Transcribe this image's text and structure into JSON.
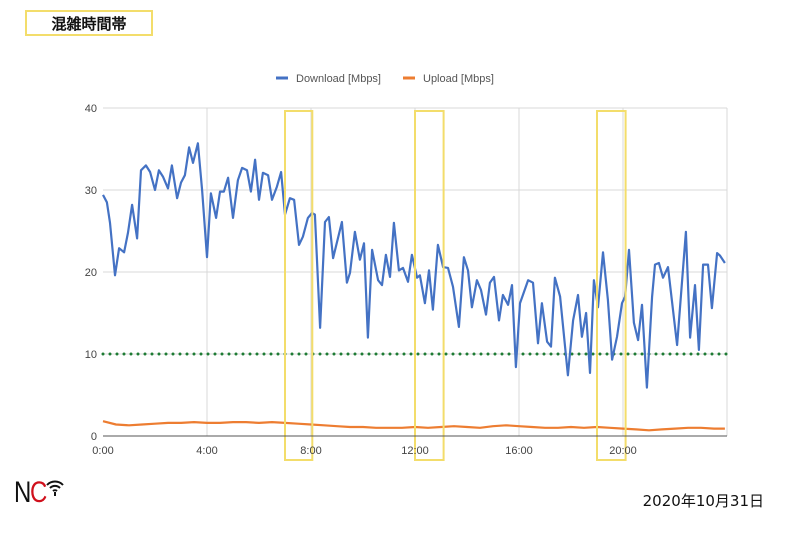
{
  "header": {
    "title": "混雑時間帯"
  },
  "footer": {
    "logo_text": "NC",
    "logo_sub": "Wi-Fi",
    "date": "2020年10月31日"
  },
  "colors": {
    "download": "#4472c4",
    "upload": "#ed7d31",
    "threshold": "#1e7b34",
    "highlight": "#f3dd6b",
    "grid": "#d9d9d9"
  },
  "chart_data": {
    "type": "line",
    "title": "",
    "xlabel": "",
    "ylabel": "",
    "xlim": [
      0,
      24
    ],
    "ylim": [
      0,
      40
    ],
    "grid": true,
    "legend_position": "top",
    "x_ticks": [
      {
        "v": 0,
        "label": "0:00"
      },
      {
        "v": 4,
        "label": "4:00"
      },
      {
        "v": 8,
        "label": "8:00"
      },
      {
        "v": 12,
        "label": "12:00"
      },
      {
        "v": 16,
        "label": "16:00"
      },
      {
        "v": 20,
        "label": "20:00"
      }
    ],
    "y_ticks": [
      {
        "v": 0,
        "label": "0"
      },
      {
        "v": 10,
        "label": "10"
      },
      {
        "v": 20,
        "label": "20"
      },
      {
        "v": 30,
        "label": "30"
      },
      {
        "v": 40,
        "label": "40"
      }
    ],
    "threshold": {
      "value": 10,
      "style": "dotted"
    },
    "highlight_ranges": [
      [
        7.0,
        8.05
      ],
      [
        12.0,
        13.1
      ],
      [
        19.0,
        20.1
      ]
    ],
    "series": [
      {
        "name": "Download [Mbps]",
        "color": "#4472c4",
        "points": [
          [
            0,
            29.4
          ],
          [
            0.15,
            28.5
          ],
          [
            0.27,
            26
          ],
          [
            0.46,
            19.6
          ],
          [
            0.62,
            22.9
          ],
          [
            0.81,
            22.4
          ],
          [
            0.96,
            24.8
          ],
          [
            1.12,
            28.2
          ],
          [
            1.31,
            24.1
          ],
          [
            1.46,
            32.4
          ],
          [
            1.65,
            33
          ],
          [
            1.81,
            32.2
          ],
          [
            2.0,
            30
          ],
          [
            2.15,
            32.4
          ],
          [
            2.31,
            31.6
          ],
          [
            2.5,
            30.2
          ],
          [
            2.65,
            33
          ],
          [
            2.85,
            29
          ],
          [
            3.0,
            30.9
          ],
          [
            3.15,
            31.8
          ],
          [
            3.31,
            35.2
          ],
          [
            3.46,
            33.3
          ],
          [
            3.65,
            35.7
          ],
          [
            3.81,
            30
          ],
          [
            4.0,
            21.8
          ],
          [
            4.15,
            29.6
          ],
          [
            4.35,
            26.6
          ],
          [
            4.5,
            29.8
          ],
          [
            4.65,
            29.8
          ],
          [
            4.81,
            31.5
          ],
          [
            5.0,
            26.6
          ],
          [
            5.19,
            31.2
          ],
          [
            5.35,
            32.7
          ],
          [
            5.54,
            32.4
          ],
          [
            5.69,
            29.8
          ],
          [
            5.85,
            33.7
          ],
          [
            6.0,
            28.8
          ],
          [
            6.15,
            32.1
          ],
          [
            6.35,
            31.8
          ],
          [
            6.5,
            28.8
          ],
          [
            6.69,
            30.4
          ],
          [
            6.85,
            32.2
          ],
          [
            7.0,
            27
          ],
          [
            7.19,
            29
          ],
          [
            7.35,
            28.8
          ],
          [
            7.54,
            23.3
          ],
          [
            7.69,
            24.3
          ],
          [
            7.88,
            26.6
          ],
          [
            8.04,
            27.2
          ],
          [
            8.15,
            27
          ],
          [
            8.35,
            13.2
          ],
          [
            8.54,
            26.1
          ],
          [
            8.69,
            26.7
          ],
          [
            8.85,
            21.7
          ],
          [
            9.19,
            26.1
          ],
          [
            9.38,
            18.7
          ],
          [
            9.5,
            19.9
          ],
          [
            9.69,
            24.9
          ],
          [
            9.88,
            21.5
          ],
          [
            10.04,
            23.5
          ],
          [
            10.19,
            12
          ],
          [
            10.35,
            22.7
          ],
          [
            10.58,
            19
          ],
          [
            10.73,
            18.4
          ],
          [
            10.88,
            22.1
          ],
          [
            11.04,
            19.4
          ],
          [
            11.19,
            26
          ],
          [
            11.38,
            20.2
          ],
          [
            11.54,
            20.5
          ],
          [
            11.73,
            18.8
          ],
          [
            11.88,
            22.1
          ],
          [
            12.08,
            19.3
          ],
          [
            12.19,
            19.6
          ],
          [
            12.38,
            16.2
          ],
          [
            12.54,
            20.2
          ],
          [
            12.69,
            15.4
          ],
          [
            12.88,
            23.3
          ],
          [
            13.08,
            20.6
          ],
          [
            13.27,
            20.5
          ],
          [
            13.46,
            18.2
          ],
          [
            13.69,
            13.3
          ],
          [
            13.88,
            21.8
          ],
          [
            14.04,
            20.2
          ],
          [
            14.19,
            15.7
          ],
          [
            14.38,
            19
          ],
          [
            14.54,
            17.8
          ],
          [
            14.73,
            14.8
          ],
          [
            14.88,
            18.7
          ],
          [
            15.04,
            19.4
          ],
          [
            15.23,
            14.1
          ],
          [
            15.38,
            17.2
          ],
          [
            15.58,
            16
          ],
          [
            15.73,
            18.4
          ],
          [
            15.88,
            8.4
          ],
          [
            16.04,
            16.2
          ],
          [
            16.35,
            19
          ],
          [
            16.54,
            18.7
          ],
          [
            16.73,
            11.3
          ],
          [
            16.88,
            16.2
          ],
          [
            17.08,
            11.5
          ],
          [
            17.23,
            10.9
          ],
          [
            17.38,
            19.3
          ],
          [
            17.58,
            17
          ],
          [
            17.88,
            7.4
          ],
          [
            18.08,
            14.1
          ],
          [
            18.27,
            17.2
          ],
          [
            18.42,
            12.1
          ],
          [
            18.58,
            15
          ],
          [
            18.73,
            7.7
          ],
          [
            18.88,
            19
          ],
          [
            19.04,
            15.7
          ],
          [
            19.23,
            22.4
          ],
          [
            19.42,
            16.6
          ],
          [
            19.58,
            9.3
          ],
          [
            19.77,
            12.1
          ],
          [
            19.96,
            16.2
          ],
          [
            20.08,
            17
          ],
          [
            20.23,
            22.7
          ],
          [
            20.42,
            13.8
          ],
          [
            20.58,
            11.7
          ],
          [
            20.73,
            16
          ],
          [
            20.92,
            5.9
          ],
          [
            21.12,
            17
          ],
          [
            21.23,
            20.9
          ],
          [
            21.38,
            21.1
          ],
          [
            21.54,
            19.3
          ],
          [
            21.73,
            20.6
          ],
          [
            22.08,
            11.1
          ],
          [
            22.42,
            24.9
          ],
          [
            22.58,
            12
          ],
          [
            22.77,
            18.4
          ],
          [
            22.92,
            10.5
          ],
          [
            23.08,
            20.9
          ],
          [
            23.27,
            20.9
          ],
          [
            23.42,
            15.6
          ],
          [
            23.62,
            22.3
          ],
          [
            23.73,
            22
          ],
          [
            23.92,
            21.1
          ]
        ]
      },
      {
        "name": "Upload [Mbps]",
        "color": "#ed7d31",
        "points": [
          [
            0,
            1.8
          ],
          [
            0.5,
            1.4
          ],
          [
            1,
            1.3
          ],
          [
            1.5,
            1.4
          ],
          [
            2,
            1.5
          ],
          [
            2.5,
            1.6
          ],
          [
            3,
            1.6
          ],
          [
            3.5,
            1.7
          ],
          [
            4,
            1.6
          ],
          [
            4.5,
            1.6
          ],
          [
            5,
            1.7
          ],
          [
            5.5,
            1.7
          ],
          [
            6,
            1.6
          ],
          [
            6.5,
            1.7
          ],
          [
            7,
            1.6
          ],
          [
            7.5,
            1.5
          ],
          [
            8,
            1.4
          ],
          [
            8.5,
            1.3
          ],
          [
            9,
            1.2
          ],
          [
            9.5,
            1.1
          ],
          [
            10,
            1.1
          ],
          [
            10.5,
            1.0
          ],
          [
            11,
            1.0
          ],
          [
            11.5,
            1.0
          ],
          [
            12,
            1.1
          ],
          [
            12.5,
            1.0
          ],
          [
            13,
            1.1
          ],
          [
            13.5,
            1.2
          ],
          [
            14,
            1.1
          ],
          [
            14.5,
            1.0
          ],
          [
            15,
            1.2
          ],
          [
            15.5,
            1.3
          ],
          [
            16,
            1.2
          ],
          [
            16.5,
            1.1
          ],
          [
            17,
            1.0
          ],
          [
            17.5,
            1.0
          ],
          [
            18,
            1.1
          ],
          [
            18.5,
            1.0
          ],
          [
            19,
            1.1
          ],
          [
            19.5,
            1.0
          ],
          [
            20,
            0.9
          ],
          [
            20.5,
            0.8
          ],
          [
            21,
            0.7
          ],
          [
            21.5,
            0.8
          ],
          [
            22,
            0.9
          ],
          [
            22.5,
            1.0
          ],
          [
            23,
            1.0
          ],
          [
            23.5,
            0.9
          ],
          [
            23.92,
            0.9
          ]
        ]
      }
    ]
  }
}
